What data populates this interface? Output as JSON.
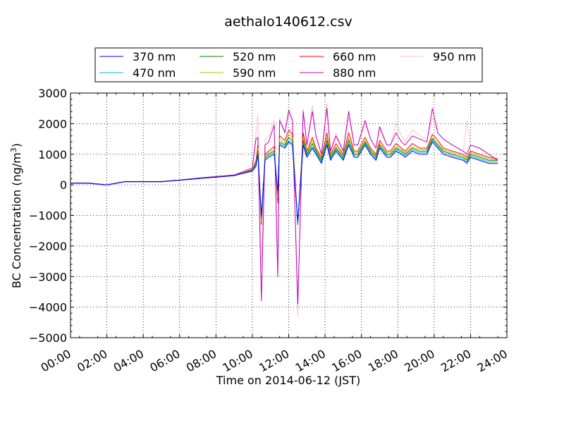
{
  "chart_data": {
    "type": "line",
    "title": "aethalo140612.csv",
    "xlabel": "Time on 2014-06-12 (JST)",
    "ylabel_main": "BC Concentration (ng/m",
    "ylabel_sup": "3",
    "ylabel_close": ")",
    "xlim": [
      0,
      24
    ],
    "ylim": [
      -5000,
      3000
    ],
    "x_tick_labels": [
      "00:00",
      "02:00",
      "04:00",
      "06:00",
      "08:00",
      "10:00",
      "12:00",
      "14:00",
      "16:00",
      "18:00",
      "20:00",
      "22:00",
      "24:00"
    ],
    "y_ticks": [
      -5000,
      -4000,
      -3000,
      -2000,
      -1000,
      0,
      1000,
      2000,
      3000
    ],
    "y_tick_labels": [
      "−5000",
      "−4000",
      "−3000",
      "−2000",
      "−1000",
      "0",
      "1000",
      "2000",
      "3000"
    ],
    "grid": true,
    "legend_position": "top-center",
    "legend_columns": 4,
    "x": [
      0,
      1,
      2,
      3,
      4,
      5,
      6,
      7,
      8,
      9,
      10,
      10.2,
      10.3,
      10.5,
      10.7,
      10.9,
      11.2,
      11.4,
      11.5,
      11.8,
      12.0,
      12.2,
      12.5,
      12.8,
      13.0,
      13.3,
      13.5,
      13.8,
      14.1,
      14.3,
      14.6,
      15.0,
      15.3,
      15.6,
      15.8,
      16.2,
      16.5,
      16.8,
      17.0,
      17.4,
      17.6,
      17.9,
      18.2,
      18.4,
      18.8,
      19.2,
      19.6,
      19.9,
      20.2,
      20.5,
      21.0,
      21.6,
      21.8,
      22.0,
      22.5,
      23.0,
      23.5
    ],
    "series": [
      {
        "name": "370 nm",
        "color": "#0000ff",
        "values": [
          50,
          50,
          0,
          100,
          100,
          100,
          150,
          200,
          250,
          300,
          450,
          600,
          1000,
          -1000,
          800,
          900,
          1000,
          -200,
          1300,
          1200,
          1400,
          1300,
          -1200,
          1300,
          900,
          1200,
          1000,
          700,
          1300,
          800,
          1100,
          800,
          1300,
          900,
          900,
          1300,
          1000,
          800,
          1200,
          900,
          900,
          1100,
          1000,
          900,
          1100,
          1000,
          1000,
          1400,
          1200,
          1000,
          900,
          800,
          700,
          900,
          800,
          700,
          700
        ]
      },
      {
        "name": "470 nm",
        "color": "#00bfbf",
        "values": [
          50,
          50,
          0,
          100,
          100,
          100,
          150,
          200,
          250,
          300,
          450,
          650,
          1050,
          -1050,
          850,
          950,
          1050,
          -250,
          1350,
          1250,
          1450,
          1350,
          -1250,
          1350,
          950,
          1250,
          1050,
          750,
          1350,
          850,
          1150,
          850,
          1350,
          950,
          950,
          1350,
          1050,
          850,
          1250,
          950,
          950,
          1150,
          1050,
          950,
          1150,
          1050,
          1050,
          1450,
          1250,
          1050,
          950,
          850,
          750,
          950,
          850,
          750,
          750
        ]
      },
      {
        "name": "520 nm",
        "color": "#008000",
        "values": [
          50,
          50,
          0,
          100,
          100,
          100,
          150,
          200,
          250,
          300,
          470,
          700,
          1100,
          -1100,
          900,
          1000,
          1100,
          -300,
          1400,
          1300,
          1550,
          1450,
          -1300,
          1450,
          1000,
          1350,
          1100,
          800,
          1450,
          900,
          1200,
          900,
          1450,
          1000,
          1000,
          1400,
          1100,
          900,
          1300,
          1000,
          1000,
          1200,
          1100,
          1000,
          1200,
          1100,
          1100,
          1500,
          1300,
          1100,
          1000,
          900,
          800,
          1000,
          900,
          800,
          800
        ]
      },
      {
        "name": "590 nm",
        "color": "#bfbf00",
        "values": [
          50,
          50,
          0,
          100,
          100,
          100,
          150,
          200,
          250,
          300,
          480,
          750,
          1200,
          -1200,
          950,
          1050,
          1150,
          -400,
          1500,
          1350,
          1650,
          1550,
          -1300,
          1550,
          1050,
          1450,
          1150,
          850,
          1550,
          950,
          1250,
          950,
          1550,
          1050,
          1050,
          1450,
          1150,
          950,
          1350,
          1050,
          1050,
          1250,
          1150,
          1050,
          1250,
          1150,
          1150,
          1550,
          1350,
          1150,
          1050,
          950,
          850,
          1050,
          950,
          850,
          800
        ]
      },
      {
        "name": "660 nm",
        "color": "#ff0000",
        "values": [
          50,
          50,
          0,
          100,
          100,
          100,
          150,
          200,
          250,
          300,
          500,
          800,
          1300,
          -1300,
          1000,
          1100,
          1250,
          -600,
          1600,
          1450,
          1800,
          1650,
          -1300,
          1700,
          1100,
          1550,
          1200,
          900,
          1700,
          1000,
          1350,
          1000,
          1700,
          1100,
          1100,
          1550,
          1200,
          1000,
          1450,
          1100,
          1100,
          1350,
          1200,
          1100,
          1350,
          1200,
          1200,
          1650,
          1450,
          1200,
          1100,
          1000,
          900,
          1100,
          1000,
          900,
          850
        ]
      },
      {
        "name": "880 nm",
        "color": "#bf00bf",
        "values": [
          60,
          60,
          0,
          110,
          110,
          110,
          160,
          220,
          270,
          320,
          550,
          1500,
          1550,
          -3800,
          1300,
          1400,
          1950,
          -3000,
          2100,
          1700,
          2450,
          2100,
          -3900,
          2400,
          1300,
          2400,
          1600,
          1000,
          2500,
          1100,
          1600,
          1100,
          2400,
          1300,
          1300,
          2100,
          1500,
          1200,
          1900,
          1300,
          1300,
          1700,
          1400,
          1300,
          1600,
          1500,
          1400,
          2500,
          1700,
          1500,
          1300,
          1100,
          1000,
          1300,
          1200,
          1000,
          800
        ]
      },
      {
        "name": "950 nm",
        "color": "#ffc0cb",
        "values": [
          60,
          60,
          -50,
          110,
          110,
          110,
          160,
          220,
          270,
          320,
          550,
          1700,
          2300,
          -2700,
          1500,
          1600,
          2100,
          -3000,
          2200,
          1750,
          2300,
          2200,
          -4300,
          2500,
          1300,
          2600,
          1600,
          1000,
          2650,
          1100,
          1700,
          1100,
          2200,
          1300,
          1300,
          2000,
          1500,
          1200,
          1800,
          1300,
          1300,
          2000,
          1600,
          1400,
          1800,
          1600,
          1500,
          2200,
          1700,
          1500,
          1300,
          1100,
          2100,
          1300,
          1200,
          1000,
          800
        ]
      }
    ]
  }
}
